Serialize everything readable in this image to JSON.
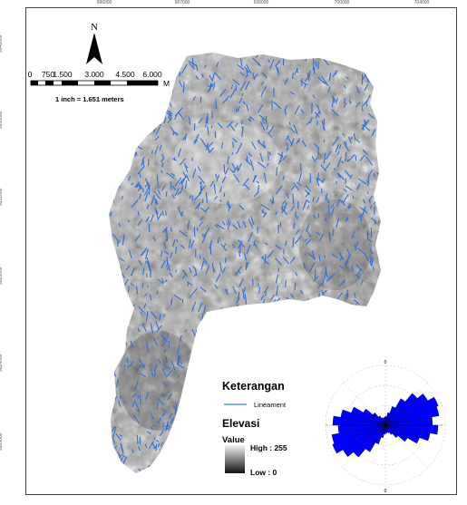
{
  "north_arrow": {
    "label": "N"
  },
  "scale_bar": {
    "ticks": [
      "0",
      "750",
      "1.500",
      "3.000",
      "4.500",
      "6.000"
    ],
    "unit": "M",
    "ratio_text": "1 inch = 1.651 meters"
  },
  "coordinates": {
    "top": [
      "686000",
      "687000",
      "696000",
      "700000",
      "704000"
    ],
    "left": [
      "9940000",
      "9936000",
      "9932000",
      "9928000",
      "9924000",
      "9920000"
    ],
    "right": [
      "",
      "",
      "",
      "",
      "",
      ""
    ]
  },
  "legend": {
    "title": "Keterangan",
    "lineament_label": "Lineament",
    "lineament_color": "#3a7bd5",
    "elevation_title": "Elevasi",
    "value_label": "Value",
    "high_label": "High : 255",
    "low_label": "Low : 0"
  },
  "rose_diagram": {
    "fill_color": "#0000ff",
    "top_label": "0",
    "bottom_label": "0"
  },
  "map": {
    "lineament_color": "#2f6fd6",
    "hillshade_light": "#e8e8e8",
    "hillshade_dark": "#3a3a3a"
  }
}
